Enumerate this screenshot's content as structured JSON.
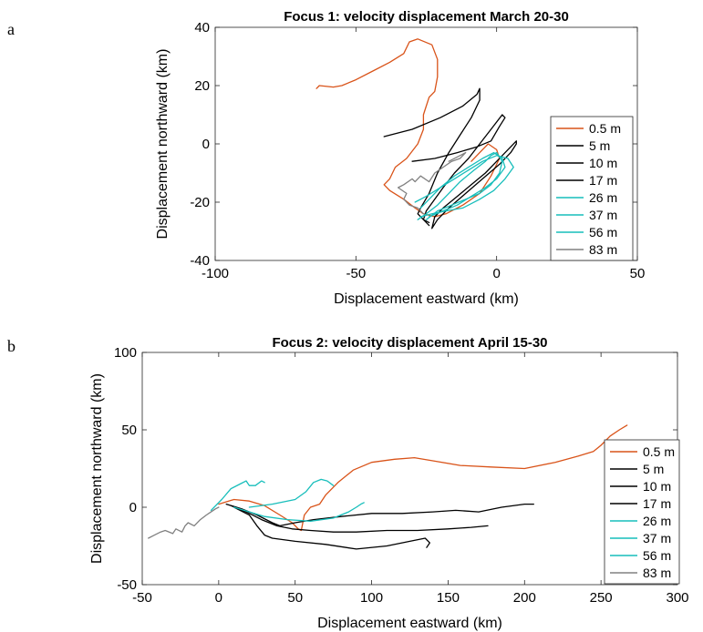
{
  "chart_data": [
    {
      "type": "line",
      "panel_label": "a",
      "title": "Focus 1: velocity displacement March 20-30",
      "xlabel": "Displacement eastward (km)",
      "ylabel": "Displacement northward (km)",
      "xlim": [
        -100,
        50
      ],
      "ylim": [
        -40,
        40
      ],
      "xticks": [
        -100,
        -50,
        0,
        50
      ],
      "yticks": [
        -40,
        -20,
        0,
        20,
        40
      ],
      "legend_position": "right-center",
      "colors": {
        "surface": "#d95319",
        "mid": "#000000",
        "cyan": "#17bebb",
        "deep": "#808080"
      },
      "series": [
        {
          "name": "0.5 m",
          "color": "#d95319",
          "x": [
            -64,
            -63,
            -58,
            -55,
            -50,
            -44,
            -38,
            -33,
            -31,
            -28,
            -23,
            -21,
            -21,
            -22,
            -24,
            -26,
            -26,
            -28,
            -32,
            -36,
            -38,
            -40,
            -38,
            -33,
            -29,
            -26,
            -22,
            -18,
            -12,
            -6,
            -2,
            0,
            1,
            0,
            -3,
            -6,
            -9
          ],
          "y": [
            19,
            20,
            19.5,
            20,
            22,
            25,
            28,
            31,
            35,
            36,
            34,
            29,
            23,
            18,
            16,
            10,
            5,
            0,
            -5,
            -8,
            -12,
            -14,
            -16,
            -19,
            -22,
            -24,
            -25,
            -24,
            -21,
            -17,
            -11,
            -7,
            -5,
            -2,
            0,
            -3,
            -6
          ]
        },
        {
          "name": "5 m",
          "color": "#000000",
          "x": [
            -40,
            -38,
            -30,
            -20,
            -12,
            -7,
            -6,
            -6,
            -9,
            -13,
            -17,
            -21,
            -24,
            -27,
            -28,
            -26,
            -24
          ],
          "y": [
            2.5,
            3,
            5,
            9,
            13,
            17,
            19,
            15,
            9,
            3,
            -3,
            -10,
            -17,
            -22,
            -24,
            -26,
            -27
          ]
        },
        {
          "name": "10 m",
          "color": "#000000",
          "x": [
            -30,
            -22,
            -14,
            -7,
            -2,
            1,
            3,
            2,
            -2,
            -6,
            -10,
            -15,
            -19,
            -22,
            -25,
            -26,
            -24
          ],
          "y": [
            -6,
            -5,
            -3,
            -1,
            1,
            6,
            9,
            10,
            5,
            0,
            -5,
            -10,
            -15,
            -19,
            -23,
            -26,
            -28
          ]
        },
        {
          "name": "17 m",
          "color": "#000000",
          "x": [
            -23,
            -21,
            -17,
            -11,
            -5,
            1,
            5,
            7,
            7,
            4,
            0,
            -4,
            -9,
            -14,
            -19,
            -22,
            -23
          ],
          "y": [
            -29,
            -26,
            -22,
            -17,
            -12,
            -7,
            -3,
            0,
            1,
            -2,
            -6,
            -10,
            -14,
            -18,
            -22,
            -25,
            -29
          ]
        },
        {
          "name": "26 m",
          "color": "#17bebb",
          "x": [
            -28,
            -25,
            -21,
            -17,
            -13,
            -8,
            -4,
            -2,
            0,
            2,
            1,
            -2,
            -6,
            -11,
            -16,
            -21,
            -25
          ],
          "y": [
            -26,
            -24,
            -21,
            -17,
            -13,
            -9,
            -6,
            -4,
            -3,
            -6,
            -10,
            -14,
            -17,
            -19,
            -21,
            -23,
            -26
          ]
        },
        {
          "name": "37 m",
          "color": "#17bebb",
          "x": [
            -29,
            -25,
            -20,
            -15,
            -10,
            -5,
            0,
            4,
            6,
            3,
            -1,
            -6,
            -12,
            -18,
            -23,
            -27
          ],
          "y": [
            -20,
            -18,
            -15,
            -12,
            -9,
            -6,
            -4,
            -5,
            -8,
            -12,
            -16,
            -19,
            -22,
            -23,
            -24,
            -25
          ]
        },
        {
          "name": "56 m",
          "color": "#17bebb",
          "x": [
            -27,
            -24,
            -20,
            -15,
            -10,
            -5,
            -1,
            2,
            3,
            0,
            -4,
            -9,
            -14,
            -19,
            -24
          ],
          "y": [
            -22,
            -19,
            -15,
            -11,
            -8,
            -5,
            -3,
            -5,
            -8,
            -12,
            -15,
            -18,
            -21,
            -23,
            -25
          ]
        },
        {
          "name": "83 m",
          "color": "#808080",
          "x": [
            -26,
            -28,
            -31,
            -33,
            -32,
            -35,
            -33,
            -30,
            -29,
            -27,
            -24,
            -22,
            -19,
            -16,
            -13,
            -11,
            -13,
            -17
          ],
          "y": [
            -24,
            -22,
            -21,
            -19,
            -17,
            -15,
            -14,
            -12,
            -13,
            -11,
            -13,
            -10,
            -8,
            -6,
            -5,
            -3,
            -4,
            -6
          ]
        }
      ]
    },
    {
      "type": "line",
      "panel_label": "b",
      "title": "Focus 2: velocity displacement April 15-30",
      "xlabel": "Displacement eastward (km)",
      "ylabel": "Displacement northward (km)",
      "xlim": [
        -50,
        300
      ],
      "ylim": [
        -50,
        100
      ],
      "xticks": [
        -50,
        0,
        50,
        100,
        150,
        200,
        250,
        300
      ],
      "yticks": [
        -50,
        0,
        50,
        100
      ],
      "legend_position": "right-bottom",
      "series": [
        {
          "name": "0.5 m",
          "color": "#d95319",
          "x": [
            0,
            10,
            20,
            30,
            40,
            48,
            52,
            54,
            56,
            60,
            66,
            70,
            78,
            88,
            100,
            115,
            128,
            140,
            158,
            178,
            200,
            220,
            235,
            245,
            250,
            256,
            262,
            267
          ],
          "y": [
            2,
            5,
            4,
            1,
            -5,
            -10,
            -14,
            -15,
            -5,
            0,
            2,
            8,
            16,
            24,
            29,
            31,
            32,
            30,
            27,
            26,
            25,
            29,
            33,
            36,
            40,
            46,
            50,
            53
          ]
        },
        {
          "name": "5 m",
          "color": "#000000",
          "x": [
            5,
            15,
            25,
            35,
            40,
            50,
            62,
            80,
            100,
            120,
            140,
            155,
            170,
            185,
            200,
            206
          ],
          "y": [
            2,
            -1,
            -5,
            -10,
            -12,
            -10,
            -8,
            -6,
            -4,
            -4,
            -3,
            -2,
            -3,
            0,
            2,
            2
          ]
        },
        {
          "name": "10 m",
          "color": "#000000",
          "x": [
            8,
            18,
            28,
            38,
            48,
            60,
            75,
            90,
            110,
            130,
            150,
            165,
            176
          ],
          "y": [
            1,
            -3,
            -8,
            -12,
            -14,
            -15,
            -16,
            -16,
            -15,
            -15,
            -14,
            -13,
            -12
          ]
        },
        {
          "name": "17 m",
          "color": "#000000",
          "x": [
            10,
            20,
            25,
            30,
            35,
            50,
            70,
            90,
            110,
            125,
            135,
            138,
            136
          ],
          "y": [
            0,
            -5,
            -12,
            -18,
            -20,
            -22,
            -24,
            -27,
            -25,
            -22,
            -20,
            -23,
            -26
          ]
        },
        {
          "name": "26 m",
          "color": "#17bebb",
          "x": [
            -5,
            2,
            8,
            14,
            18,
            20,
            24,
            28,
            30
          ],
          "y": [
            -2,
            5,
            12,
            15,
            17,
            14,
            14,
            17,
            16
          ]
        },
        {
          "name": "37 m",
          "color": "#17bebb",
          "x": [
            20,
            35,
            50,
            57,
            62,
            67,
            71,
            75
          ],
          "y": [
            0,
            2,
            5,
            10,
            16,
            18,
            17,
            14
          ]
        },
        {
          "name": "56 m",
          "color": "#17bebb",
          "x": [
            10,
            20,
            30,
            45,
            60,
            75,
            85,
            90,
            93,
            95
          ],
          "y": [
            0,
            -3,
            -6,
            -8,
            -9,
            -7,
            -3,
            0,
            2,
            3
          ]
        },
        {
          "name": "83 m",
          "color": "#808080",
          "x": [
            -46,
            -42,
            -38,
            -35,
            -30,
            -28,
            -24,
            -22,
            -20,
            -16,
            -12,
            -8,
            -5,
            -2,
            0
          ],
          "y": [
            -20,
            -18,
            -16,
            -15,
            -17,
            -14,
            -16,
            -12,
            -10,
            -12,
            -8,
            -5,
            -3,
            -1,
            0
          ]
        }
      ]
    }
  ]
}
